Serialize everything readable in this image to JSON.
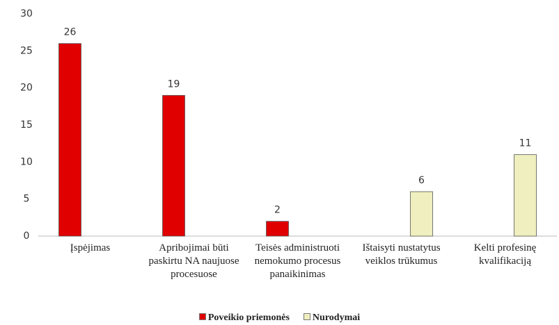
{
  "chart_data": {
    "type": "bar",
    "categories": [
      "Įspėjimas",
      "Apribojimai būti paskirtu NA naujuose procesuose",
      "Teisės administruoti nemokumo procesus panaikinimas",
      "Ištaisyti nustatytus veiklos trūkumus",
      "Kelti profesinę kvalifikaciją"
    ],
    "series": [
      {
        "name": "Poveikio priemonės",
        "color": "#e00000",
        "values": [
          26,
          19,
          2,
          null,
          null
        ]
      },
      {
        "name": "Nurodymai",
        "color": "#efefbf",
        "values": [
          null,
          null,
          null,
          6,
          11
        ]
      }
    ],
    "ylim": [
      0,
      30
    ],
    "yticks": [
      0,
      5,
      10,
      15,
      20,
      25,
      30
    ],
    "grid": false,
    "legend": "bottom"
  }
}
